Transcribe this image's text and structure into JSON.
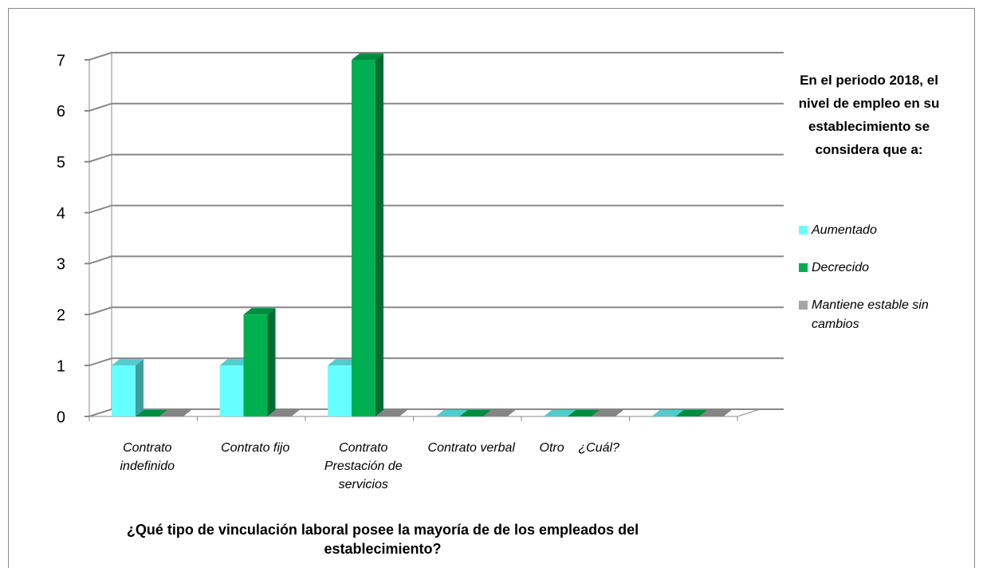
{
  "chart_data": {
    "type": "bar3d",
    "legend_title": "En el periodo 2018, el nivel de empleo en su establecimiento se considera que a:",
    "x_label": "¿Qué tipo de vinculación laboral posee la mayoría de de los empleados del establecimiento?",
    "categories": [
      "Contrato indefinido",
      "Contrato fijo",
      "Contrato Prestación de servicios",
      "Contrato verbal",
      "Otro    ¿Cuál?",
      null
    ],
    "series": [
      {
        "name": "Aumentado",
        "color": "#66ffff",
        "values": [
          1,
          1,
          1,
          0,
          0,
          0
        ]
      },
      {
        "name": "Decrecido",
        "color": "#00b050",
        "values": [
          0,
          2,
          7,
          0,
          0,
          0
        ]
      },
      {
        "name": "Mantiene estable sin cambios",
        "color": "#a6a6a6",
        "values": [
          0,
          0,
          0,
          0,
          0,
          0
        ]
      }
    ],
    "ylim": [
      0,
      7
    ],
    "yticks": [
      0,
      1,
      2,
      3,
      4,
      5,
      6,
      7
    ],
    "grid": true,
    "legend": "right"
  }
}
